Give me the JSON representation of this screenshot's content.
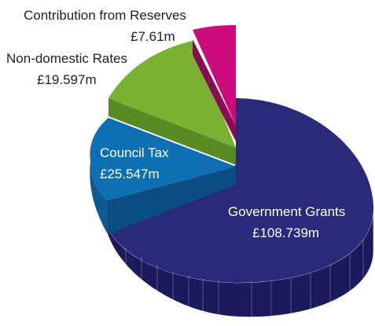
{
  "chart_data": {
    "type": "pie",
    "style": "3d-exploded",
    "title": "",
    "legend": "none",
    "colors": {
      "Government Grants": "#2b2a7a",
      "Council Tax": "#0f6fb3",
      "Non-domestic Rates": "#7ab133",
      "Contribution from Reserves": "#cc0a7c"
    },
    "slices": [
      {
        "name": "Government Grants",
        "value": 108.739,
        "value_label": "£108.739m"
      },
      {
        "name": "Council Tax",
        "value": 25.547,
        "value_label": "£25.547m"
      },
      {
        "name": "Non-domestic Rates",
        "value": 19.597,
        "value_label": "£19.597m"
      },
      {
        "name": "Contribution from Reserves",
        "value": 7.61,
        "value_label": "£7.61m"
      }
    ]
  }
}
